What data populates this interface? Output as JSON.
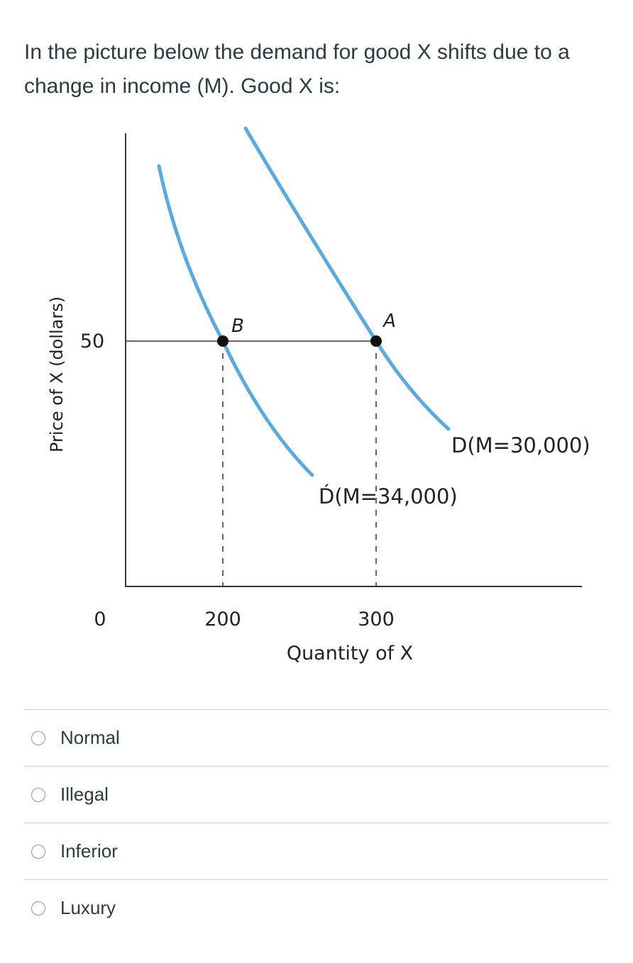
{
  "question": {
    "text": "In the picture below the demand for good X shifts due to a change in income (M). Good X is:"
  },
  "chart_data": {
    "type": "line",
    "ylabel": "Price of X (dollars)",
    "xlabel": "Quantity of X",
    "x_ticks": [
      "200",
      "300"
    ],
    "y_ticks": [
      "50"
    ],
    "origin_label": "0",
    "series": [
      {
        "name": "D(M=30,000)",
        "color": "#5aaae0",
        "points": [
          [
            230,
            87
          ],
          [
            300,
            50
          ],
          [
            345,
            31
          ]
        ]
      },
      {
        "name": "D́(M=34,000)",
        "color": "#5aaae0",
        "points": [
          [
            158,
            80
          ],
          [
            200,
            50
          ],
          [
            260,
            27
          ]
        ]
      }
    ],
    "points": [
      {
        "label": "B",
        "x": 200,
        "y": 50
      },
      {
        "label": "A",
        "x": 300,
        "y": 50
      }
    ]
  },
  "answers": [
    {
      "label": "Normal"
    },
    {
      "label": "Illegal"
    },
    {
      "label": "Inferior"
    },
    {
      "label": "Luxury"
    }
  ]
}
